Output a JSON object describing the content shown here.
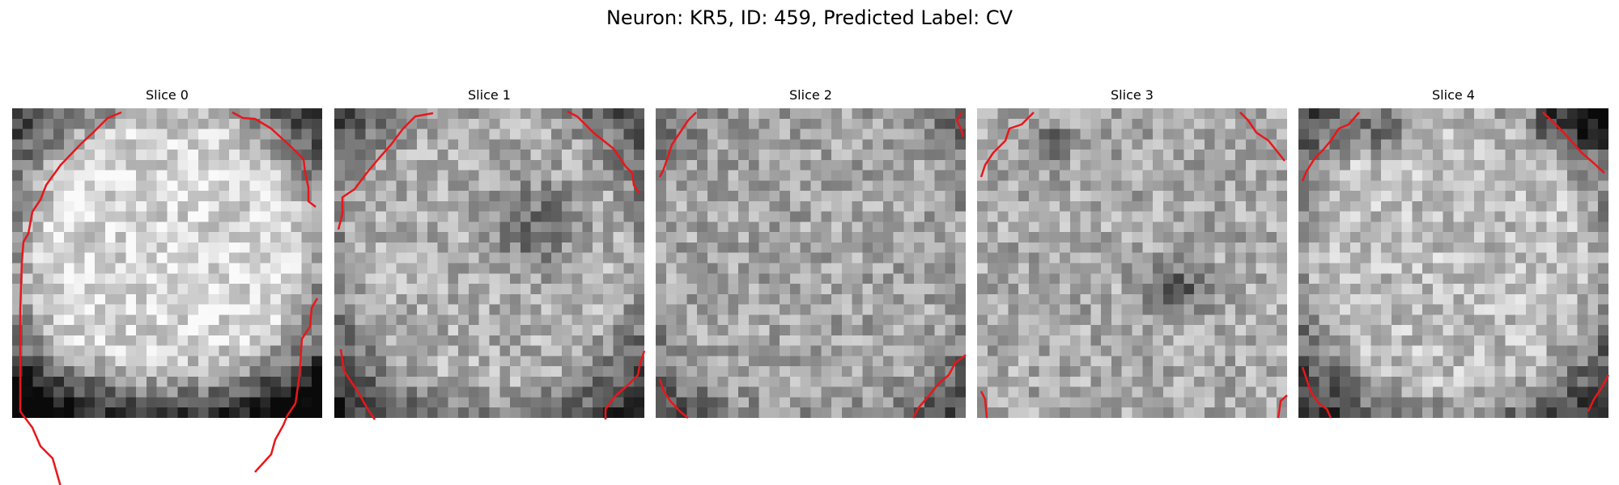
{
  "title": "Neuron: KR5, ID: 459, Predicted Label: CV",
  "slices": [
    {
      "label": "Slice 0",
      "pattern": "bright-disk"
    },
    {
      "label": "Slice 1",
      "pattern": "disk-dark-core"
    },
    {
      "label": "Slice 2",
      "pattern": "diffuse"
    },
    {
      "label": "Slice 3",
      "pattern": "dark-blotches"
    },
    {
      "label": "Slice 4",
      "pattern": "bright-band"
    }
  ],
  "colors": {
    "contour": "#e8171a",
    "background": "#ffffff"
  }
}
